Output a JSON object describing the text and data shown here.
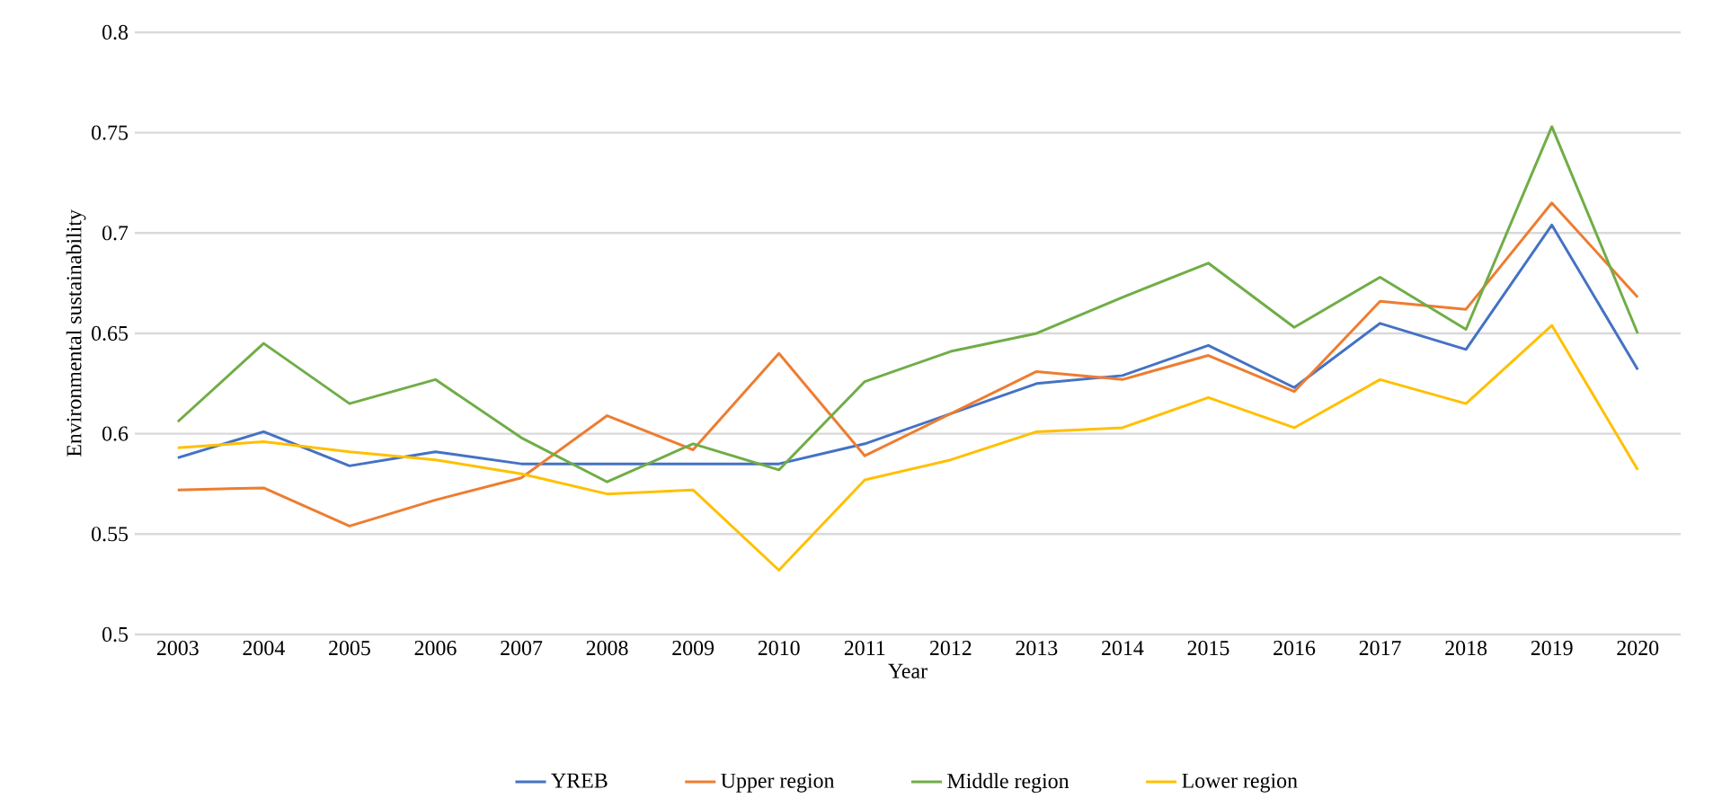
{
  "chart_data": {
    "type": "line",
    "xlabel": "Year",
    "ylabel": "Environmental sustainability",
    "categories": [
      "2003",
      "2004",
      "2005",
      "2006",
      "2007",
      "2008",
      "2009",
      "2010",
      "2011",
      "2012",
      "2013",
      "2014",
      "2015",
      "2016",
      "2017",
      "2018",
      "2019",
      "2020"
    ],
    "series": [
      {
        "name": "YREB",
        "color": "#4472c4",
        "values": [
          0.588,
          0.601,
          0.584,
          0.591,
          0.585,
          0.585,
          0.585,
          0.585,
          0.595,
          0.61,
          0.625,
          0.629,
          0.644,
          0.623,
          0.655,
          0.642,
          0.704,
          0.632
        ]
      },
      {
        "name": "Upper region",
        "color": "#ed7d31",
        "values": [
          0.572,
          0.573,
          0.554,
          0.567,
          0.578,
          0.609,
          0.592,
          0.64,
          0.589,
          0.61,
          0.631,
          0.627,
          0.639,
          0.621,
          0.666,
          0.662,
          0.715,
          0.668
        ]
      },
      {
        "name": "Middle region",
        "color": "#70ad47",
        "values": [
          0.606,
          0.645,
          0.615,
          0.627,
          0.598,
          0.576,
          0.595,
          0.582,
          0.626,
          0.641,
          0.65,
          0.668,
          0.685,
          0.653,
          0.678,
          0.652,
          0.753,
          0.65
        ]
      },
      {
        "name": "Lower region",
        "color": "#ffc000",
        "values": [
          0.593,
          0.596,
          0.591,
          0.587,
          0.58,
          0.57,
          0.572,
          0.532,
          0.577,
          0.587,
          0.601,
          0.603,
          0.618,
          0.603,
          0.627,
          0.615,
          0.654,
          0.582
        ]
      }
    ],
    "ylim": [
      0.5,
      0.8
    ],
    "yticks": [
      0.5,
      0.55,
      0.6,
      0.65,
      0.7,
      0.75,
      0.8
    ],
    "grid": "y",
    "legend": "bottom",
    "marker": "none",
    "line_style": "solid"
  }
}
